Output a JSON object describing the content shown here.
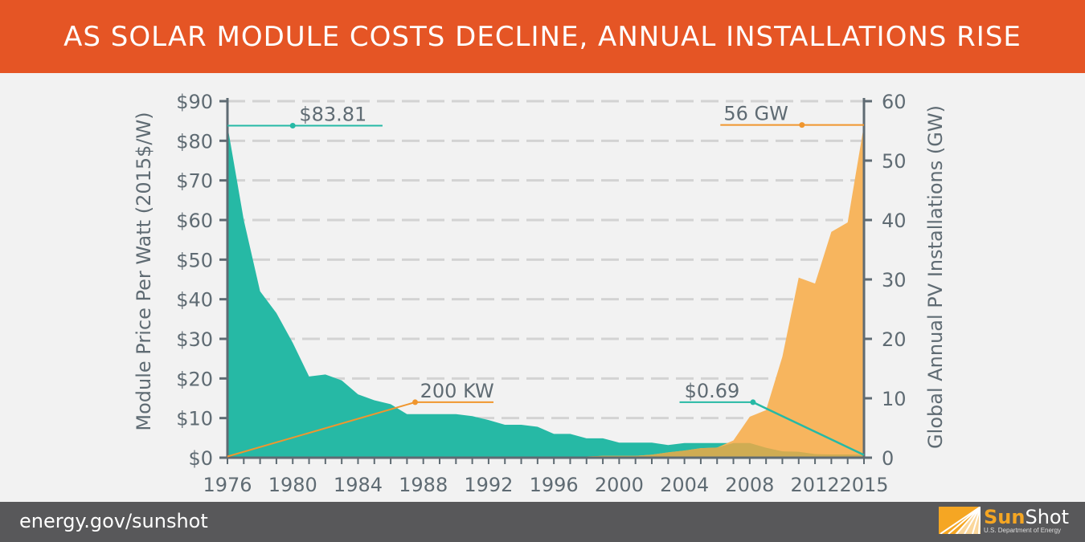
{
  "header": {
    "title": "AS SOLAR MODULE COSTS DECLINE, ANNUAL INSTALLATIONS RISE"
  },
  "footer": {
    "url": "energy.gov/sunshot",
    "logo_sun": "Sun",
    "logo_shot": "Shot",
    "logo_dept": "U.S. Department of Energy"
  },
  "colors": {
    "header_bg": "#e55525",
    "price": "#26b9a5",
    "installs": "#f7b55e",
    "overlap": "#cfac53",
    "axis": "#5f6b73",
    "grid": "#d3d3d3",
    "footer_bg": "#58585a"
  },
  "chart_data": {
    "type": "area",
    "title": "AS SOLAR MODULE COSTS DECLINE, ANNUAL INSTALLATIONS RISE",
    "xlabel": "",
    "ylabel": "Module Price Per Watt (2015$/W)",
    "y2label": "Global Annual PV Installations (GW)",
    "xlim": [
      1976,
      2015
    ],
    "ylim": [
      0,
      90
    ],
    "y2lim": [
      0,
      60
    ],
    "grid": true,
    "x_ticks": [
      "1976",
      "1980",
      "1984",
      "1988",
      "1992",
      "1996",
      "2000",
      "2004",
      "2008",
      "2012",
      "2015"
    ],
    "y_ticks": [
      "$0",
      "$10",
      "$20",
      "$30",
      "$40",
      "$50",
      "$60",
      "$70",
      "$80",
      "$90"
    ],
    "y2_ticks": [
      "0",
      "10",
      "20",
      "30",
      "40",
      "50",
      "60"
    ],
    "x": [
      1976,
      1977,
      1978,
      1979,
      1980,
      1981,
      1982,
      1983,
      1984,
      1985,
      1986,
      1987,
      1988,
      1989,
      1990,
      1991,
      1992,
      1993,
      1994,
      1995,
      1996,
      1997,
      1998,
      1999,
      2000,
      2001,
      2002,
      2003,
      2004,
      2005,
      2006,
      2007,
      2008,
      2009,
      2010,
      2011,
      2012,
      2013,
      2014,
      2015
    ],
    "series": [
      {
        "name": "Module Price ($/W)",
        "axis": "left",
        "values": [
          83.81,
          60,
          42,
          36.5,
          29,
          20.5,
          21,
          19.5,
          16,
          14.5,
          13.5,
          11,
          11,
          11,
          11,
          10.5,
          9.5,
          8.3,
          8.3,
          7.8,
          6,
          6,
          4.9,
          4.9,
          3.8,
          3.8,
          3.8,
          3.2,
          3.7,
          3.7,
          3.7,
          3.7,
          3.7,
          2.5,
          1.6,
          1.5,
          0.9,
          0.8,
          0.8,
          0.69
        ]
      },
      {
        "name": "Global Annual PV Installations (GW)",
        "axis": "right",
        "values": [
          0.2,
          0.2,
          0.2,
          0.2,
          0.2,
          0.2,
          0.2,
          0.2,
          0.2,
          0.2,
          0.2,
          0.2,
          0.2,
          0.2,
          0.2,
          0.2,
          0.2,
          0.2,
          0.2,
          0.2,
          0.2,
          0.2,
          0.2,
          0.3,
          0.3,
          0.3,
          0.5,
          0.9,
          1.2,
          1.6,
          1.7,
          2.9,
          6.9,
          8,
          17,
          30.3,
          29.3,
          38,
          39.6,
          56
        ]
      }
    ],
    "annotations": [
      {
        "label": "$83.81",
        "series": "price",
        "x": 1976,
        "value": 83.81
      },
      {
        "label": "200 KW",
        "series": "installs",
        "x": 1976,
        "value": 0.2
      },
      {
        "label": "$0.69",
        "series": "price",
        "x": 2015,
        "value": 0.69
      },
      {
        "label": "56 GW",
        "series": "installs",
        "x": 2015,
        "value": 56
      }
    ]
  }
}
